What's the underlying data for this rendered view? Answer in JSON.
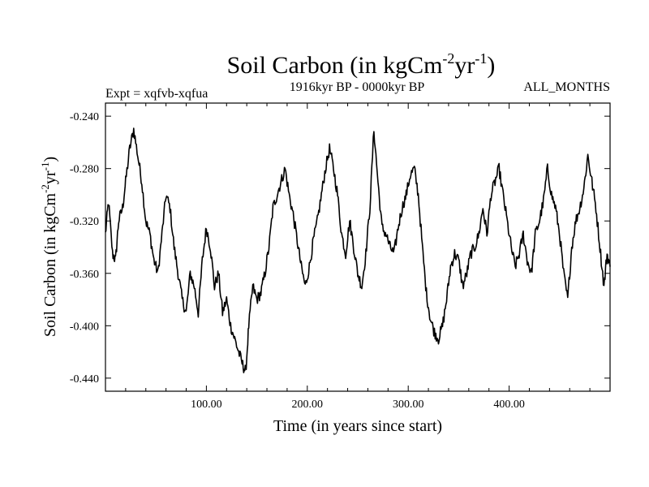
{
  "chart_data": {
    "type": "line",
    "title_main": "Soil Carbon (in kgCm",
    "title_sup1": "-2",
    "title_mid": "yr",
    "title_sup2": "-1",
    "title_end": ")",
    "expt_label": "Expt = xqfvb-xqfua",
    "subtitle": "1916kyr BP - 0000kyr BP",
    "months_label": "ALL_MONTHS",
    "xlabel": "Time (in years since start)",
    "ylabel_main": "Soil Carbon (in kgCm",
    "ylabel_sup1": "-2",
    "ylabel_mid": "yr",
    "ylabel_sup2": "-1",
    "ylabel_end": ")",
    "xlim": [
      0,
      500
    ],
    "ylim": [
      -0.45,
      -0.23
    ],
    "x_ticks": [
      100,
      200,
      300,
      400
    ],
    "x_tick_labels": [
      "100.00",
      "200.00",
      "300.00",
      "400.00"
    ],
    "y_ticks": [
      -0.24,
      -0.28,
      -0.32,
      -0.36,
      -0.4,
      -0.44
    ],
    "y_tick_labels": [
      "-0.240",
      "-0.280",
      "-0.320",
      "-0.360",
      "-0.400",
      "-0.440"
    ],
    "line_color": "#000000",
    "anchors": [
      [
        0,
        -0.33
      ],
      [
        3,
        -0.305
      ],
      [
        7,
        -0.345
      ],
      [
        10,
        -0.35
      ],
      [
        13,
        -0.32
      ],
      [
        17,
        -0.31
      ],
      [
        20,
        -0.29
      ],
      [
        24,
        -0.265
      ],
      [
        28,
        -0.25
      ],
      [
        32,
        -0.27
      ],
      [
        36,
        -0.29
      ],
      [
        40,
        -0.32
      ],
      [
        44,
        -0.33
      ],
      [
        48,
        -0.35
      ],
      [
        52,
        -0.36
      ],
      [
        56,
        -0.33
      ],
      [
        60,
        -0.3
      ],
      [
        64,
        -0.31
      ],
      [
        68,
        -0.34
      ],
      [
        72,
        -0.36
      ],
      [
        76,
        -0.38
      ],
      [
        80,
        -0.39
      ],
      [
        84,
        -0.36
      ],
      [
        88,
        -0.37
      ],
      [
        92,
        -0.39
      ],
      [
        96,
        -0.35
      ],
      [
        100,
        -0.325
      ],
      [
        104,
        -0.34
      ],
      [
        108,
        -0.37
      ],
      [
        112,
        -0.36
      ],
      [
        116,
        -0.39
      ],
      [
        120,
        -0.38
      ],
      [
        124,
        -0.4
      ],
      [
        128,
        -0.41
      ],
      [
        132,
        -0.42
      ],
      [
        136,
        -0.43
      ],
      [
        139,
        -0.435
      ],
      [
        142,
        -0.4
      ],
      [
        146,
        -0.37
      ],
      [
        150,
        -0.38
      ],
      [
        154,
        -0.375
      ],
      [
        158,
        -0.36
      ],
      [
        162,
        -0.34
      ],
      [
        166,
        -0.31
      ],
      [
        170,
        -0.3
      ],
      [
        174,
        -0.29
      ],
      [
        178,
        -0.28
      ],
      [
        182,
        -0.3
      ],
      [
        186,
        -0.315
      ],
      [
        190,
        -0.335
      ],
      [
        194,
        -0.355
      ],
      [
        198,
        -0.37
      ],
      [
        202,
        -0.355
      ],
      [
        206,
        -0.335
      ],
      [
        210,
        -0.32
      ],
      [
        214,
        -0.3
      ],
      [
        218,
        -0.28
      ],
      [
        222,
        -0.265
      ],
      [
        226,
        -0.28
      ],
      [
        230,
        -0.3
      ],
      [
        234,
        -0.33
      ],
      [
        238,
        -0.345
      ],
      [
        242,
        -0.32
      ],
      [
        246,
        -0.34
      ],
      [
        250,
        -0.36
      ],
      [
        254,
        -0.37
      ],
      [
        258,
        -0.345
      ],
      [
        262,
        -0.31
      ],
      [
        266,
        -0.25
      ],
      [
        270,
        -0.29
      ],
      [
        274,
        -0.325
      ],
      [
        278,
        -0.33
      ],
      [
        282,
        -0.34
      ],
      [
        286,
        -0.345
      ],
      [
        290,
        -0.325
      ],
      [
        294,
        -0.31
      ],
      [
        298,
        -0.3
      ],
      [
        302,
        -0.285
      ],
      [
        306,
        -0.28
      ],
      [
        310,
        -0.3
      ],
      [
        314,
        -0.34
      ],
      [
        318,
        -0.375
      ],
      [
        322,
        -0.395
      ],
      [
        326,
        -0.405
      ],
      [
        330,
        -0.41
      ],
      [
        334,
        -0.4
      ],
      [
        338,
        -0.38
      ],
      [
        342,
        -0.355
      ],
      [
        346,
        -0.345
      ],
      [
        350,
        -0.35
      ],
      [
        354,
        -0.37
      ],
      [
        358,
        -0.36
      ],
      [
        362,
        -0.345
      ],
      [
        366,
        -0.34
      ],
      [
        370,
        -0.33
      ],
      [
        374,
        -0.31
      ],
      [
        378,
        -0.33
      ],
      [
        382,
        -0.3
      ],
      [
        386,
        -0.29
      ],
      [
        390,
        -0.28
      ],
      [
        394,
        -0.3
      ],
      [
        398,
        -0.32
      ],
      [
        402,
        -0.34
      ],
      [
        406,
        -0.355
      ],
      [
        410,
        -0.345
      ],
      [
        414,
        -0.33
      ],
      [
        418,
        -0.35
      ],
      [
        422,
        -0.36
      ],
      [
        426,
        -0.33
      ],
      [
        430,
        -0.32
      ],
      [
        434,
        -0.305
      ],
      [
        438,
        -0.28
      ],
      [
        442,
        -0.3
      ],
      [
        446,
        -0.31
      ],
      [
        450,
        -0.33
      ],
      [
        454,
        -0.36
      ],
      [
        458,
        -0.38
      ],
      [
        462,
        -0.34
      ],
      [
        466,
        -0.32
      ],
      [
        470,
        -0.31
      ],
      [
        474,
        -0.295
      ],
      [
        478,
        -0.27
      ],
      [
        482,
        -0.29
      ],
      [
        486,
        -0.31
      ],
      [
        490,
        -0.34
      ],
      [
        494,
        -0.37
      ],
      [
        497,
        -0.345
      ],
      [
        500,
        -0.355
      ]
    ]
  }
}
